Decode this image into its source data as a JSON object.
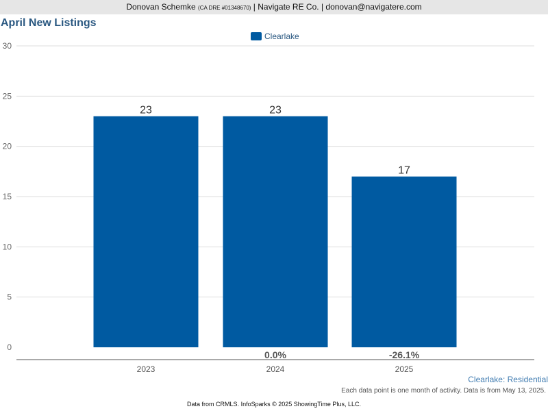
{
  "header": {
    "agent_name": "Donovan Schemke",
    "license": "(CA DRE #01348670)",
    "company_and_email": "| Navigate RE Co. | donovan@navigatere.com"
  },
  "colors": {
    "bar": "#005aa1",
    "title": "#2a5881",
    "grid": "#dddddd"
  },
  "chart_data": {
    "type": "bar",
    "title": "April New Listings",
    "categories": [
      "2023",
      "2024",
      "2025"
    ],
    "series": [
      {
        "name": "Clearlake",
        "values": [
          23,
          23,
          17
        ]
      }
    ],
    "value_labels": [
      "23",
      "23",
      "17"
    ],
    "change_labels": [
      "",
      "0.0%",
      "-26.1%"
    ],
    "yticks": [
      "0",
      "5",
      "10",
      "15",
      "20",
      "25",
      "30"
    ],
    "ylim": [
      0,
      30
    ],
    "grid": true,
    "legend_position": "top-center",
    "xlabel": "",
    "ylabel": ""
  },
  "footer": {
    "segment": "Clearlake: Residential",
    "note": "Each data point is one month of activity. Data is from May 13, 2025.",
    "credit": "Data from CRMLS. InfoSparks © 2025 ShowingTime Plus, LLC."
  }
}
